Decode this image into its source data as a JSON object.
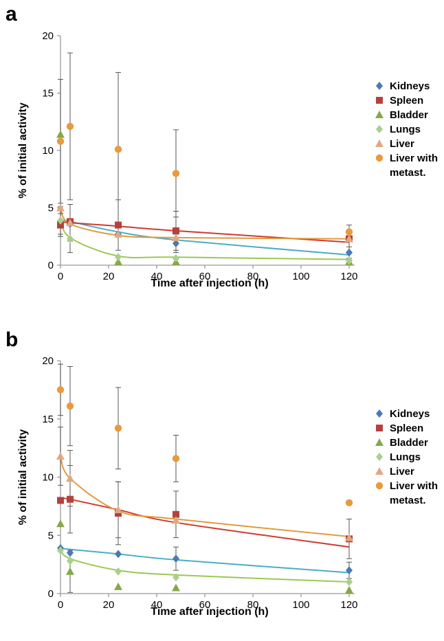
{
  "chart_data": [
    {
      "panel": "a",
      "type": "scatter",
      "xlabel": "Time after injection (h)",
      "ylabel": "% of initial activity",
      "xlim": [
        0,
        120
      ],
      "ylim": [
        0,
        20
      ],
      "xticks": [
        0,
        20,
        40,
        60,
        80,
        100,
        120
      ],
      "yticks": [
        0,
        5,
        10,
        15,
        20
      ],
      "x": [
        0,
        4,
        24,
        48,
        120
      ],
      "legend_position": "right",
      "series": [
        {
          "name": "Kidneys",
          "marker": "diamond",
          "color": "#4a7ab5",
          "fit_color": "#4bacc6",
          "values": [
            3.8,
            3.6,
            2.7,
            1.9,
            1.1
          ],
          "err": [
            null,
            null,
            null,
            0.8,
            0.5
          ],
          "fit": [
            3.9,
            3.8,
            2.9,
            2.2,
            0.9
          ]
        },
        {
          "name": "Spleen",
          "marker": "square",
          "color": "#b5413d",
          "fit_color": "#d03a2f",
          "values": [
            3.5,
            3.8,
            3.5,
            3.0,
            2.3
          ],
          "err": [
            1.0,
            1.5,
            2.2,
            1.7,
            1.2
          ],
          "fit": [
            3.8,
            3.7,
            3.4,
            3.0,
            2.0
          ]
        },
        {
          "name": "Bladder",
          "marker": "triangle",
          "color": "#86a84a",
          "fit_color": null,
          "values": [
            11.4,
            null,
            0.3,
            0.3,
            0.3
          ],
          "err": [
            null,
            null,
            null,
            null,
            null
          ],
          "fit": null
        },
        {
          "name": "Lungs",
          "marker": "diamond",
          "color": "#a8d08d",
          "fit_color": "#9bc94f",
          "values": [
            3.9,
            2.3,
            0.7,
            0.6,
            0.4
          ],
          "err": [
            1.2,
            1.2,
            null,
            null,
            null
          ],
          "fit": [
            4.1,
            2.4,
            0.8,
            0.7,
            0.5
          ]
        },
        {
          "name": "Liver",
          "marker": "triangle",
          "color": "#e0a882",
          "fit_color": "#e29a3c",
          "values": [
            5.0,
            3.7,
            2.7,
            2.4,
            2.3
          ],
          "err": [
            null,
            1.6,
            null,
            null,
            null
          ],
          "fit": [
            5.0,
            3.6,
            2.6,
            2.4,
            2.3
          ]
        },
        {
          "name": "Liver with metast.",
          "marker": "circle",
          "color": "#e99a3f",
          "fit_color": null,
          "values": [
            10.8,
            12.1,
            10.1,
            8.0,
            2.9
          ],
          "err": [
            5.4,
            6.4,
            6.7,
            3.8,
            null
          ],
          "fit": null
        }
      ]
    },
    {
      "panel": "b",
      "type": "scatter",
      "xlabel": "Time after injection (h)",
      "ylabel": "% of initial activity",
      "xlim": [
        0,
        120
      ],
      "ylim": [
        0,
        20
      ],
      "xticks": [
        0,
        20,
        40,
        60,
        80,
        100,
        120
      ],
      "yticks": [
        0,
        5,
        10,
        15,
        20
      ],
      "x": [
        0,
        4,
        24,
        48,
        120
      ],
      "legend_position": "right",
      "series": [
        {
          "name": "Kidneys",
          "marker": "diamond",
          "color": "#4a7ab5",
          "fit_color": "#4bacc6",
          "values": [
            3.9,
            3.5,
            3.4,
            3.0,
            2.0
          ],
          "err": [
            null,
            null,
            null,
            1.0,
            0.7
          ],
          "fit": [
            3.9,
            3.8,
            3.4,
            2.9,
            1.8
          ]
        },
        {
          "name": "Spleen",
          "marker": "square",
          "color": "#b5413d",
          "fit_color": "#d03a2f",
          "values": [
            8.0,
            8.1,
            6.9,
            6.8,
            4.7
          ],
          "err": [
            null,
            2.9,
            2.7,
            2.0,
            1.7
          ],
          "fit": [
            8.2,
            8.1,
            7.2,
            6.1,
            4.0
          ]
        },
        {
          "name": "Bladder",
          "marker": "triangle",
          "color": "#86a84a",
          "fit_color": null,
          "values": [
            6.0,
            1.9,
            0.6,
            0.5,
            0.3
          ],
          "err": [
            null,
            1.8,
            null,
            null,
            null
          ],
          "fit": null
        },
        {
          "name": "Lungs",
          "marker": "diamond",
          "color": "#a8d08d",
          "fit_color": "#9bc94f",
          "values": [
            3.7,
            2.8,
            1.9,
            1.4,
            1.0
          ],
          "err": [
            null,
            null,
            null,
            null,
            null
          ],
          "fit": [
            3.8,
            3.0,
            2.0,
            1.6,
            1.0
          ]
        },
        {
          "name": "Liver",
          "marker": "triangle",
          "color": "#e0a882",
          "fit_color": "#e29a3c",
          "values": [
            11.8,
            9.9,
            7.2,
            6.3,
            4.8
          ],
          "err": [
            2.5,
            2.4,
            2.4,
            null,
            null
          ],
          "fit": [
            11.8,
            9.9,
            7.1,
            6.4,
            4.9
          ]
        },
        {
          "name": "Liver with metast.",
          "marker": "circle",
          "color": "#e99a3f",
          "fit_color": null,
          "values": [
            17.5,
            16.1,
            14.2,
            11.6,
            7.8
          ],
          "err": [
            2.2,
            3.4,
            3.5,
            2.0,
            null
          ],
          "fit": null
        }
      ]
    }
  ]
}
